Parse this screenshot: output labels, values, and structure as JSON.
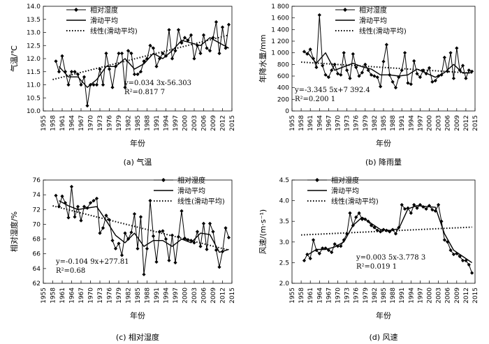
{
  "legend": {
    "series1": "相对湿度",
    "series2": "滑动平均",
    "series3": "线性(滑动平均)"
  },
  "chart_data": [
    {
      "type": "line",
      "caption": "(a) 气温",
      "ylabel": "气温/℃",
      "xlabel": "年份",
      "xlim": [
        1955,
        2015
      ],
      "ylim": [
        10.0,
        14.0
      ],
      "yticks": [
        "10.0",
        "10.5",
        "11.0",
        "11.5",
        "12.0",
        "12.5",
        "13.0",
        "13.5",
        "14.0"
      ],
      "xticks": [
        "1955",
        "1958",
        "1961",
        "1964",
        "1967",
        "1970",
        "1973",
        "1976",
        "1979",
        "1982",
        "1985",
        "1988",
        "1991",
        "1994",
        "1997",
        "2000",
        "2003",
        "2006",
        "2009",
        "2012",
        "2015"
      ],
      "equation": "y=0.034 3x-56.303",
      "r2": "R²=0.817 7",
      "series": [
        {
          "name": "相对湿度",
          "x": [
            1959,
            1960,
            1961,
            1962,
            1963,
            1964,
            1965,
            1966,
            1967,
            1968,
            1969,
            1970,
            1971,
            1972,
            1973,
            1974,
            1975,
            1976,
            1977,
            1978,
            1979,
            1980,
            1981,
            1982,
            1983,
            1984,
            1985,
            1986,
            1987,
            1988,
            1989,
            1990,
            1991,
            1992,
            1993,
            1994,
            1995,
            1996,
            1997,
            1998,
            1999,
            2000,
            2001,
            2002,
            2003,
            2004,
            2005,
            2006,
            2007,
            2008,
            2009,
            2010,
            2011,
            2012,
            2013,
            2014
          ],
          "values": [
            11.9,
            11.5,
            12.1,
            11.5,
            11.0,
            11.5,
            11.5,
            11.4,
            11.0,
            11.3,
            10.2,
            11.0,
            11.0,
            11.0,
            11.6,
            11.0,
            12.2,
            11.6,
            10.9,
            11.7,
            12.2,
            12.2,
            10.9,
            12.3,
            12.2,
            11.4,
            11.4,
            11.5,
            11.9,
            12.0,
            12.5,
            12.4,
            11.7,
            12.0,
            12.2,
            12.1,
            13.1,
            12.0,
            12.3,
            13.1,
            12.6,
            12.8,
            12.7,
            12.9,
            12.0,
            12.5,
            12.2,
            12.9,
            12.4,
            12.3,
            12.8,
            13.4,
            12.2,
            13.2,
            12.4,
            13.3
          ]
        },
        {
          "name": "滑动平均",
          "x": [
            1960,
            1963,
            1966,
            1969,
            1972,
            1975,
            1978,
            1981,
            1984,
            1987,
            1990,
            1993,
            1996,
            1999,
            2002,
            2005,
            2008,
            2011,
            2014
          ],
          "values": [
            11.7,
            11.3,
            11.3,
            10.9,
            11.2,
            11.7,
            11.7,
            12.0,
            11.6,
            11.8,
            12.2,
            12.0,
            12.3,
            12.7,
            12.6,
            12.5,
            12.8,
            12.6,
            12.4
          ]
        },
        {
          "name": "线性(滑动平均)",
          "x": [
            1958,
            2014
          ],
          "values": [
            11.2,
            12.9
          ]
        }
      ]
    },
    {
      "type": "line",
      "caption": "(b) 降雨量",
      "ylabel": "年降水量/mm",
      "xlabel": "年份",
      "xlim": [
        1955,
        2015
      ],
      "ylim": [
        0,
        1800
      ],
      "yticks": [
        "0",
        "200",
        "400",
        "600",
        "800",
        "1 000",
        "1 200",
        "1 400",
        "1 600",
        "1 800"
      ],
      "xticks": [
        "1955",
        "1958",
        "1961",
        "1964",
        "1967",
        "1970",
        "1973",
        "1976",
        "1979",
        "1982",
        "1985",
        "1988",
        "1991",
        "1994",
        "1997",
        "2000",
        "2003",
        "2006",
        "2009",
        "2012",
        "2015"
      ],
      "equation": "y=-3.345 5x+7 392.4",
      "r2": "R²=0.200 1",
      "series": [
        {
          "name": "相对湿度",
          "x": [
            1959,
            1960,
            1961,
            1962,
            1963,
            1964,
            1965,
            1966,
            1967,
            1968,
            1969,
            1970,
            1971,
            1972,
            1973,
            1974,
            1975,
            1976,
            1977,
            1978,
            1979,
            1980,
            1981,
            1982,
            1983,
            1984,
            1985,
            1986,
            1987,
            1988,
            1989,
            1990,
            1991,
            1992,
            1993,
            1994,
            1995,
            1996,
            1997,
            1998,
            1999,
            2000,
            2001,
            2002,
            2003,
            2004,
            2005,
            2006,
            2007,
            2008,
            2009,
            2010,
            2011,
            2012,
            2013,
            2014
          ],
          "values": [
            1020,
            980,
            1060,
            900,
            750,
            1650,
            780,
            620,
            580,
            700,
            800,
            640,
            620,
            1000,
            700,
            560,
            980,
            750,
            600,
            660,
            800,
            700,
            620,
            600,
            580,
            420,
            850,
            1140,
            620,
            500,
            400,
            580,
            700,
            1000,
            480,
            460,
            860,
            640,
            580,
            700,
            640,
            740,
            500,
            520,
            600,
            620,
            920,
            680,
            1000,
            560,
            1080,
            700,
            780,
            560,
            700,
            680
          ]
        },
        {
          "name": "滑动平均",
          "x": [
            1960,
            1963,
            1966,
            1969,
            1972,
            1975,
            1978,
            1981,
            1984,
            1987,
            1990,
            1993,
            1996,
            1999,
            2002,
            2005,
            2008,
            2011,
            2014
          ],
          "values": [
            1010,
            820,
            1000,
            700,
            760,
            820,
            760,
            720,
            620,
            620,
            600,
            620,
            720,
            650,
            580,
            660,
            800,
            650,
            660
          ]
        },
        {
          "name": "线性(滑动平均)",
          "x": [
            1958,
            2014
          ],
          "values": [
            840,
            650
          ]
        }
      ]
    },
    {
      "type": "line",
      "caption": "(c) 相对湿度",
      "ylabel": "相对湿度/%",
      "xlabel": "年份",
      "xlim": [
        1955,
        2015
      ],
      "ylim": [
        62,
        76
      ],
      "yticks": [
        "62",
        "64",
        "66",
        "68",
        "70",
        "72",
        "74",
        "76"
      ],
      "xticks": [
        "1955",
        "1958",
        "1961",
        "1964",
        "1967",
        "1970",
        "1973",
        "1976",
        "1979",
        "1982",
        "1985",
        "1988",
        "1991",
        "1994",
        "1997",
        "2000",
        "2003",
        "2006",
        "2009",
        "2012",
        "2015"
      ],
      "equation": "y=-0.104 9x+277.81",
      "r2": "R²=0.68",
      "series": [
        {
          "name": "相对湿度",
          "x": [
            1959,
            1960,
            1961,
            1962,
            1963,
            1964,
            1965,
            1966,
            1967,
            1968,
            1969,
            1970,
            1971,
            1972,
            1973,
            1974,
            1975,
            1976,
            1977,
            1978,
            1979,
            1980,
            1981,
            1982,
            1983,
            1984,
            1985,
            1986,
            1987,
            1988,
            1989,
            1990,
            1991,
            1992,
            1993,
            1994,
            1995,
            1996,
            1997,
            1998,
            1999,
            2000,
            2001,
            2002,
            2003,
            2004,
            2005,
            2006,
            2007,
            2008,
            2009,
            2010,
            2011,
            2012,
            2013,
            2014
          ],
          "values": [
            73.9,
            72.4,
            73.8,
            72.9,
            70.9,
            75.1,
            71.0,
            72.4,
            70.5,
            72.4,
            72.2,
            72.9,
            73.2,
            73.5,
            68.8,
            69.5,
            71.2,
            70.6,
            67.8,
            66.7,
            67.4,
            65.8,
            68.8,
            68.0,
            68.9,
            71.4,
            66.7,
            71.0,
            63.2,
            66.7,
            73.2,
            68.4,
            64.9,
            69.0,
            69.1,
            68.0,
            65.1,
            68.5,
            64.8,
            68.3,
            71.8,
            68.1,
            67.9,
            67.8,
            67.5,
            69.0,
            67.0,
            70.1,
            66.6,
            70.1,
            69.0,
            66.5,
            64.2,
            66.3,
            69.5,
            68.2
          ]
        },
        {
          "name": "滑动平均",
          "x": [
            1960,
            1963,
            1966,
            1969,
            1972,
            1975,
            1978,
            1981,
            1984,
            1987,
            1990,
            1993,
            1996,
            1999,
            2002,
            2005,
            2008,
            2011,
            2014
          ],
          "values": [
            73.2,
            72.5,
            72.0,
            72.2,
            72.4,
            70.5,
            68.5,
            67.5,
            68.8,
            67.0,
            67.8,
            67.8,
            67.0,
            68.0,
            67.5,
            68.8,
            68.6,
            66.2,
            66.6
          ]
        },
        {
          "name": "线性(滑动平均)",
          "x": [
            1958,
            2014
          ],
          "values": [
            72.5,
            66.5
          ]
        }
      ]
    },
    {
      "type": "line",
      "caption": "(d) 风速",
      "ylabel": "风速/(m·s⁻¹)",
      "xlabel": "年份",
      "xlim": [
        1955,
        2015
      ],
      "ylim": [
        2.0,
        4.5
      ],
      "yticks": [
        "2.0",
        "2.5",
        "3.0",
        "3.5",
        "4.0",
        "4.5"
      ],
      "xticks": [
        "1955",
        "1958",
        "1961",
        "1964",
        "1967",
        "1970",
        "1973",
        "1976",
        "1979",
        "1982",
        "1985",
        "1988",
        "1991",
        "1994",
        "1997",
        "2000",
        "2003",
        "2006",
        "2009",
        "2012",
        "2015"
      ],
      "equation": "y=0.003 5x-3.778 3",
      "r2": "R²=0.019 1",
      "series": [
        {
          "name": "相对湿度",
          "x": [
            1959,
            1960,
            1961,
            1962,
            1963,
            1964,
            1965,
            1966,
            1967,
            1968,
            1969,
            1970,
            1971,
            1972,
            1973,
            1974,
            1975,
            1976,
            1977,
            1978,
            1979,
            1980,
            1981,
            1982,
            1983,
            1984,
            1985,
            1986,
            1987,
            1988,
            1989,
            1990,
            1991,
            1992,
            1993,
            1994,
            1995,
            1996,
            1997,
            1998,
            1999,
            2000,
            2001,
            2002,
            2003,
            2004,
            2005,
            2006,
            2007,
            2008,
            2009,
            2010,
            2011,
            2012,
            2013,
            2014
          ],
          "values": [
            2.55,
            2.7,
            2.6,
            3.05,
            2.8,
            2.72,
            2.85,
            2.85,
            2.8,
            2.75,
            2.95,
            2.9,
            2.9,
            3.05,
            3.2,
            3.7,
            3.4,
            3.6,
            3.7,
            3.55,
            3.55,
            3.5,
            3.4,
            3.35,
            3.28,
            3.25,
            3.3,
            3.28,
            3.25,
            3.3,
            3.2,
            3.35,
            3.9,
            3.8,
            3.82,
            3.7,
            3.9,
            3.82,
            3.9,
            3.85,
            3.8,
            3.88,
            3.78,
            3.75,
            3.9,
            3.5,
            3.05,
            3.0,
            2.8,
            2.7,
            2.72,
            2.65,
            2.55,
            2.55,
            2.45,
            2.25
          ]
        },
        {
          "name": "滑动平均",
          "x": [
            1960,
            1963,
            1966,
            1969,
            1972,
            1975,
            1978,
            1981,
            1984,
            1987,
            1990,
            1993,
            1996,
            1999,
            2002,
            2005,
            2008,
            2011,
            2014
          ],
          "values": [
            2.68,
            2.82,
            2.82,
            2.88,
            3.0,
            3.4,
            3.6,
            3.45,
            3.3,
            3.28,
            3.32,
            3.8,
            3.88,
            3.86,
            3.84,
            3.2,
            2.8,
            2.65,
            2.5
          ]
        },
        {
          "name": "线性(滑动平均)",
          "x": [
            1958,
            2014
          ],
          "values": [
            3.17,
            3.36
          ]
        }
      ]
    }
  ]
}
